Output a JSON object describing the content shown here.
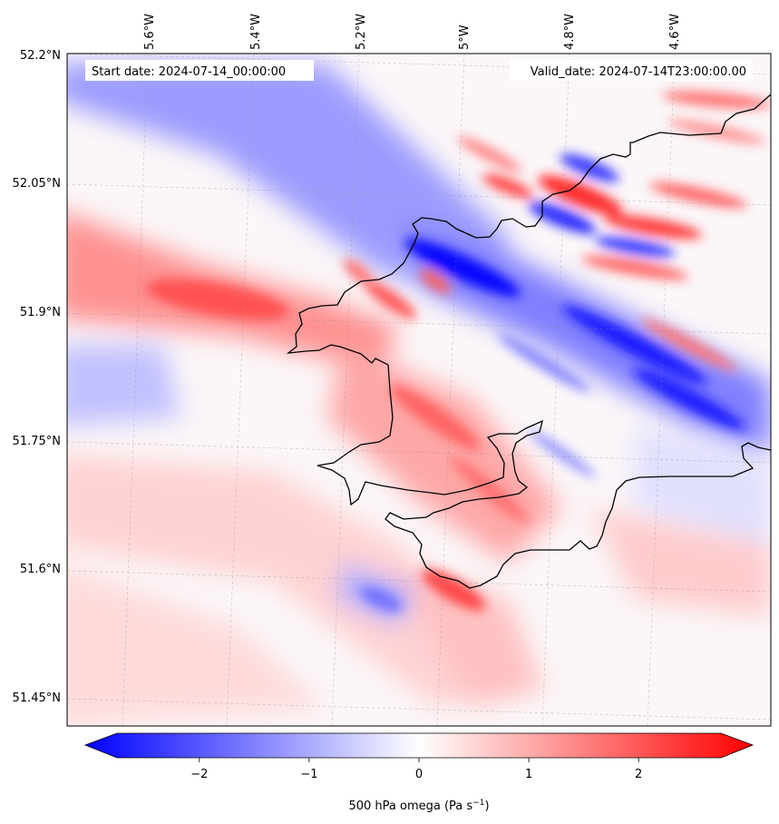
{
  "map": {
    "start_label": "Start date: 2024-07-14_00:00:00",
    "valid_label": "Valid_date: 2024-07-14T23:00:00.00",
    "lon_labels": [
      "5.6°W",
      "5.4°W",
      "5.2°W",
      "5°W",
      "4.8°W",
      "4.6°W"
    ],
    "lat_labels": [
      "52.2°N",
      "52.05°N",
      "51.9°N",
      "51.75°N",
      "51.6°N",
      "51.45°N"
    ]
  },
  "colorbar": {
    "label_text": "500 hPa omega (Pa s",
    "label_exponent": "−1",
    "label_close": ")",
    "ticks": [
      "−2",
      "−1",
      "0",
      "1",
      "2"
    ],
    "tick_values": [
      -2,
      -1,
      0,
      1,
      2
    ],
    "range": [
      -2.75,
      2.75
    ],
    "cmap": "bwr",
    "extend": "both"
  },
  "colors": {
    "negative": "#0000ff",
    "neutral": "#ffffff",
    "positive": "#ff0000",
    "coastline": "#000000"
  }
}
